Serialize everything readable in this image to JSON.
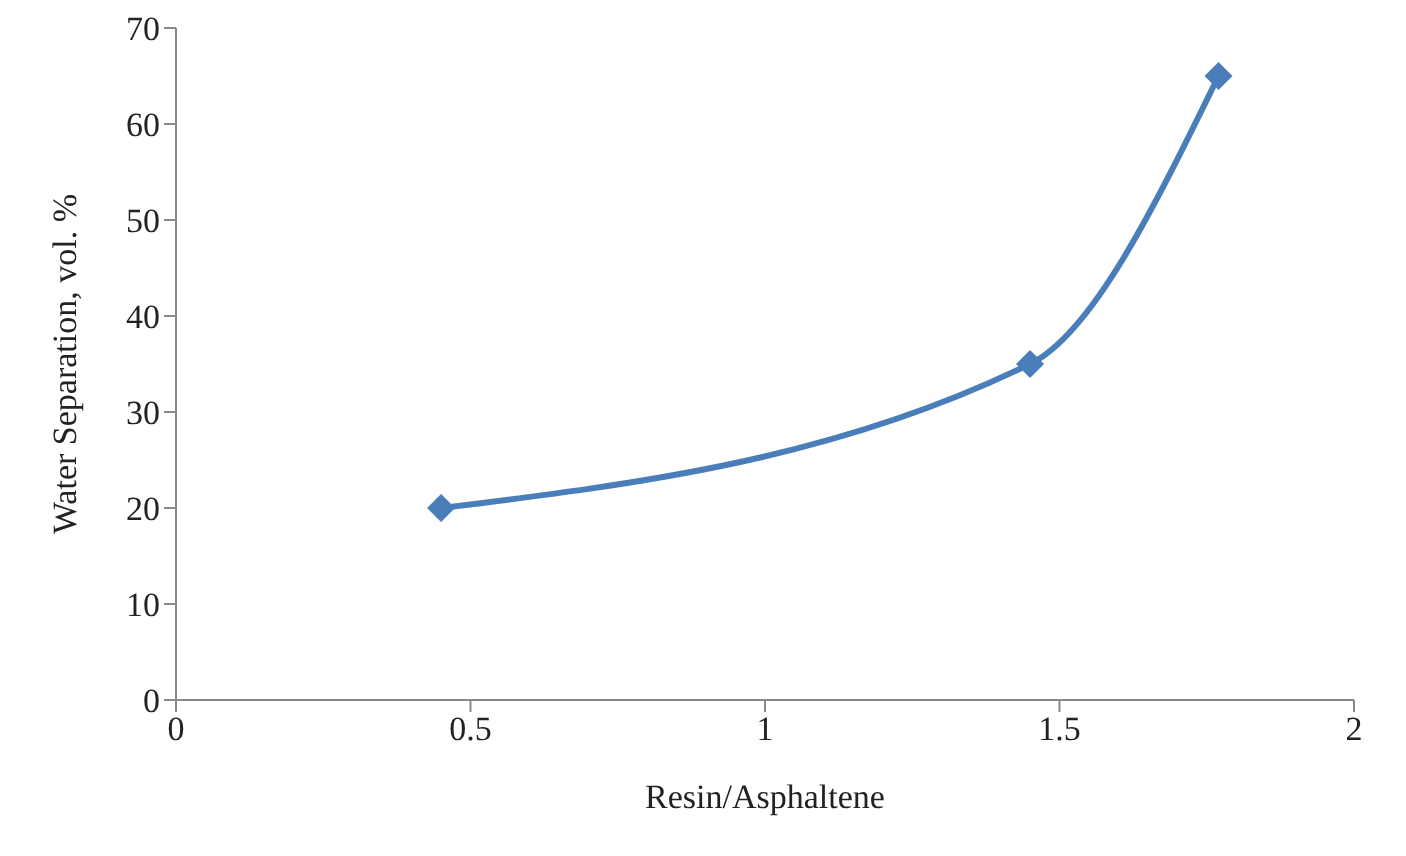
{
  "chart_data": {
    "type": "line",
    "xlabel": "Resin/Asphaltene",
    "ylabel": "Water Separation, vol. %",
    "x": [
      0.45,
      1.45,
      1.77
    ],
    "series": [
      {
        "color": "#4a7ebb",
        "values": [
          20,
          35,
          65
        ]
      }
    ],
    "xlim": [
      0,
      2
    ],
    "xticks": [
      0,
      0.5,
      1,
      1.5,
      2
    ],
    "ylim": [
      0,
      70
    ],
    "yticks": [
      0,
      10,
      20,
      30,
      40,
      50,
      60,
      70
    ],
    "grid": false,
    "legend": false,
    "marker": "diamond",
    "line_style": "solid"
  }
}
